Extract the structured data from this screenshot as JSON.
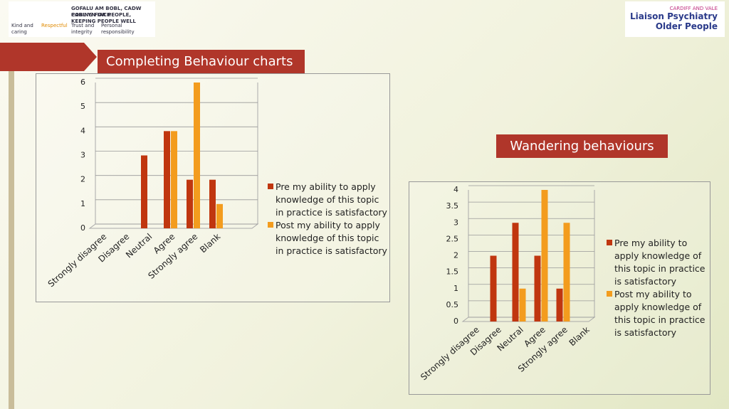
{
  "header": {
    "left_logo": {
      "lines": [
        "GOFALU AM BOBL, CADW POBL YN IACH",
        "CARING FOR PEOPLE, KEEPING PEOPLE WELL"
      ],
      "values": [
        "Kind and caring",
        "Respectful",
        "Trust and integrity",
        "Personal responsibility"
      ]
    },
    "right_logo": {
      "org": "CARDIFF AND VALE",
      "lines": [
        "Liaison Psychiatry",
        "Older People"
      ]
    }
  },
  "chart_data": [
    {
      "type": "bar",
      "title": "Completing Behaviour charts",
      "categories": [
        "Strongly disagree",
        "Disagree",
        "Neutral",
        "Agree",
        "Strongly agree",
        "Blank"
      ],
      "series": [
        {
          "name": "Pre my ability to apply knowledge of this topic in practice is satisfactory",
          "color": "#c0360f",
          "values": [
            0,
            0,
            3,
            4,
            2,
            2
          ]
        },
        {
          "name": "Post my ability to apply knowledge of this topic in practice is satisfactory",
          "color": "#f39c1e",
          "values": [
            0,
            0,
            0,
            4,
            6,
            1
          ]
        }
      ],
      "ylim": [
        0,
        6
      ],
      "yticks": [
        0,
        1,
        2,
        3,
        4,
        5,
        6
      ],
      "grid": true,
      "legend": "right"
    },
    {
      "type": "bar",
      "title": "Wandering behaviours",
      "categories": [
        "Strongly disagree",
        "Disagree",
        "Neutral",
        "Agree",
        "Strongly agree",
        "Blank"
      ],
      "series": [
        {
          "name": "Pre my ability to apply knowledge of this topic in practice is satisfactory",
          "color": "#c0360f",
          "values": [
            0,
            2,
            3,
            2,
            1,
            0
          ]
        },
        {
          "name": "Post my ability to apply knowledge of this topic in practice is satisfactory",
          "color": "#f39c1e",
          "values": [
            0,
            0,
            1,
            4,
            3,
            0
          ]
        }
      ],
      "ylim": [
        0,
        4
      ],
      "yticks": [
        0,
        0.5,
        1,
        1.5,
        2,
        2.5,
        3,
        3.5,
        4
      ],
      "grid": true,
      "legend": "right"
    }
  ]
}
